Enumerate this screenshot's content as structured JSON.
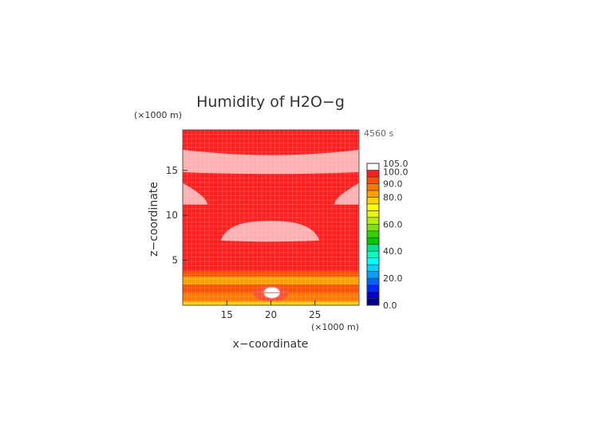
{
  "chart_data": {
    "type": "heatmap",
    "title": "Humidity of H2O−g",
    "xlabel": "x−coordinate",
    "ylabel": "z−coordinate",
    "x_unit": "(×1000 m)",
    "y_unit": "(×1000 m)",
    "time_label": "4560 s",
    "xlim": [
      10,
      30
    ],
    "ylim": [
      0,
      19.5
    ],
    "x_ticks": [
      15,
      20,
      25
    ],
    "y_ticks": [
      5,
      10,
      15
    ],
    "grid": true,
    "colorbar": {
      "levels": [
        0,
        5,
        10,
        15,
        20,
        25,
        30,
        35,
        40,
        45,
        50,
        55,
        60,
        65,
        70,
        75,
        80,
        85,
        90,
        95,
        100,
        105
      ],
      "tick_labels": [
        "0.0",
        "20.0",
        "40.0",
        "60.0",
        "80.0",
        "90.0",
        "100.0",
        "105.0"
      ],
      "colors": [
        "#00008c",
        "#0000cc",
        "#0028ff",
        "#0064ff",
        "#00a0ff",
        "#00d2ff",
        "#00ffff",
        "#00ffc0",
        "#00e08c",
        "#00c800",
        "#32d200",
        "#7de600",
        "#b4f000",
        "#e6f500",
        "#ffff00",
        "#ffd200",
        "#ffa000",
        "#ff7800",
        "#ff5000",
        "#ff1e1e",
        "#ffffff"
      ]
    },
    "regions": [
      {
        "name": "upper saturated band",
        "value": 100,
        "color": "#ffafaf",
        "shape": "band",
        "x": [
          10,
          30
        ],
        "z_bottom_edge": 14.8,
        "z_bottom_mid": 14.6,
        "z_top_edge": 17.3,
        "z_top_mid": 16.7
      },
      {
        "name": "left lobe",
        "value": 100,
        "color": "#ffafaf",
        "shape": "lobe",
        "x": [
          10,
          12.8
        ],
        "z": [
          11.2,
          13.6
        ]
      },
      {
        "name": "right lobe",
        "value": 100,
        "color": "#ffafaf",
        "shape": "lobe",
        "x": [
          27.2,
          30
        ],
        "z": [
          11.2,
          13.6
        ]
      },
      {
        "name": "central cloud",
        "value": 100,
        "color": "#ffafaf",
        "shape": "blob",
        "x": [
          14.3,
          25.5
        ],
        "z": [
          7.2,
          9.4
        ]
      },
      {
        "name": "surface bubble",
        "value": 100,
        "color": "#ffafaf",
        "shape": "bubble",
        "x": [
          19.2,
          21.0
        ],
        "z": [
          0.8,
          2.0
        ]
      }
    ],
    "background_value": 95,
    "low_level_bands": [
      {
        "z": [
          0,
          0.4
        ],
        "value": 75
      },
      {
        "z": [
          0.4,
          1.4
        ],
        "value": 85
      },
      {
        "z": [
          1.4,
          2.3
        ],
        "value": 90
      },
      {
        "z": [
          2.3,
          3.2
        ],
        "value": 80
      },
      {
        "z": [
          3.2,
          3.8
        ],
        "value": 90
      }
    ]
  }
}
